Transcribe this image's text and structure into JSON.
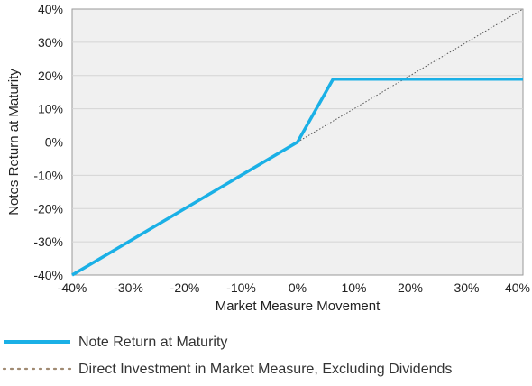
{
  "chart_data": {
    "type": "line",
    "title": "",
    "xlabel": "Market Measure Movement",
    "ylabel": "Notes Return at Maturity",
    "xlim": [
      -40,
      40
    ],
    "ylim": [
      -40,
      40
    ],
    "x_ticks": [
      -40,
      -30,
      -20,
      -10,
      0,
      10,
      20,
      30,
      40
    ],
    "y_ticks": [
      -40,
      -30,
      -20,
      -10,
      0,
      10,
      20,
      30,
      40
    ],
    "x_tick_labels": [
      "-40%",
      "-30%",
      "-20%",
      "-10%",
      "0%",
      "10%",
      "20%",
      "30%",
      "40%"
    ],
    "y_tick_labels": [
      "-40%",
      "-30%",
      "-20%",
      "-10%",
      "0%",
      "10%",
      "20%",
      "30%",
      "40%"
    ],
    "grid": "horizontal",
    "legend_position": "bottom",
    "series": [
      {
        "name": "Note Return at Maturity",
        "x": [
          -40,
          0,
          6.3,
          40
        ],
        "y": [
          -40,
          0,
          18.9,
          18.9
        ],
        "color": "#1ab0e6",
        "style": "solid"
      },
      {
        "name": "Direct Investment in Market Measure, Excluding Dividends",
        "x": [
          0,
          40
        ],
        "y": [
          0,
          40
        ],
        "color": "#555555",
        "style": "dotted"
      }
    ]
  },
  "colors": {
    "plot_background": "#f0f0f0",
    "grid": "#d4d4d4",
    "axis": "#999999"
  }
}
